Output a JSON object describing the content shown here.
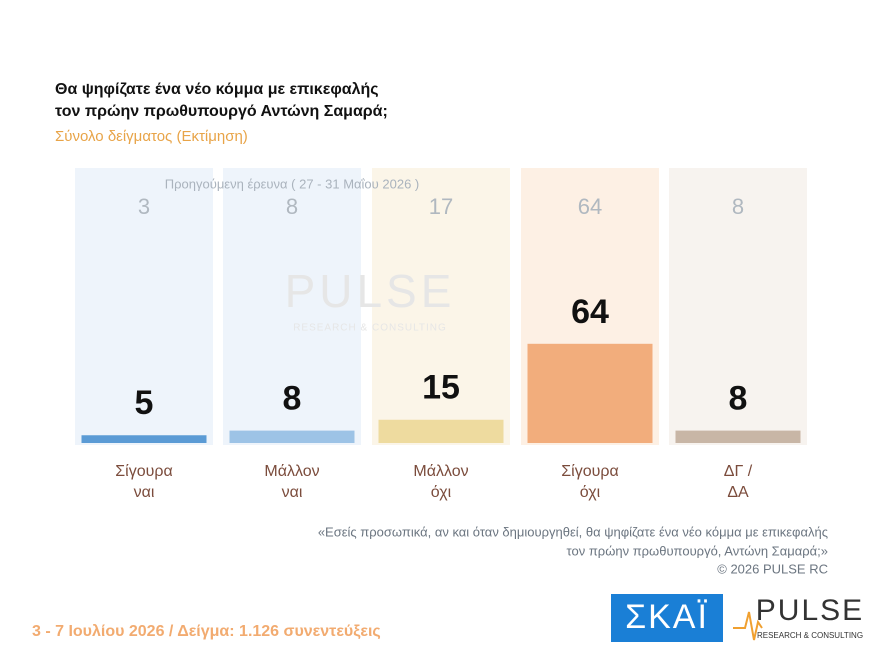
{
  "chart_data": {
    "type": "bar",
    "title": [
      "Θα ψηφίζατε ένα νέο κόμμα με επικεφαλής",
      "τον πρώην πρωθυπουργό Αντώνη Σαμαρά;"
    ],
    "subtitle": "Σύνολο δείγματος (Εκτίμηση)",
    "categories": [
      [
        "Σίγουρα",
        "ναι"
      ],
      [
        "Μάλλον",
        "ναι"
      ],
      [
        "Μάλλον",
        "όχι"
      ],
      [
        "Σίγουρα",
        "όχι"
      ],
      [
        "ΔΓ /",
        "ΔΑ"
      ]
    ],
    "colors": [
      "#5b9bd5",
      "#9dc3e6",
      "#eedb9f",
      "#f2ad7c",
      "#c8b6a6"
    ],
    "series": [
      {
        "name": null,
        "values": [
          5,
          8,
          15,
          64,
          8
        ]
      },
      {
        "name": "Προηγούμενη έρευνα ( 27 - 31 Μαΐου 2026 )",
        "values": [
          3,
          8,
          17,
          64,
          8
        ]
      }
    ],
    "note": [
      "«Εσείς προσωπικά, αν και όταν δημιουργηθεί, θα ψηφίζατε ένα νέο κόμμα με επικεφαλής",
      "τον πρώην πρωθυπουργό, Αντώνη Σαμαρά;»",
      "©  2026  PULSE RC"
    ],
    "footer": "3 - 7  Ιουλίου 2026  /  Δείγμα:  1.126 συνεντεύξεις",
    "logos": {
      "skai": "ΣΚΑΪ",
      "pulse": "PULSE",
      "pulse_tagline": "RESEARCH & CONSULTING"
    }
  }
}
